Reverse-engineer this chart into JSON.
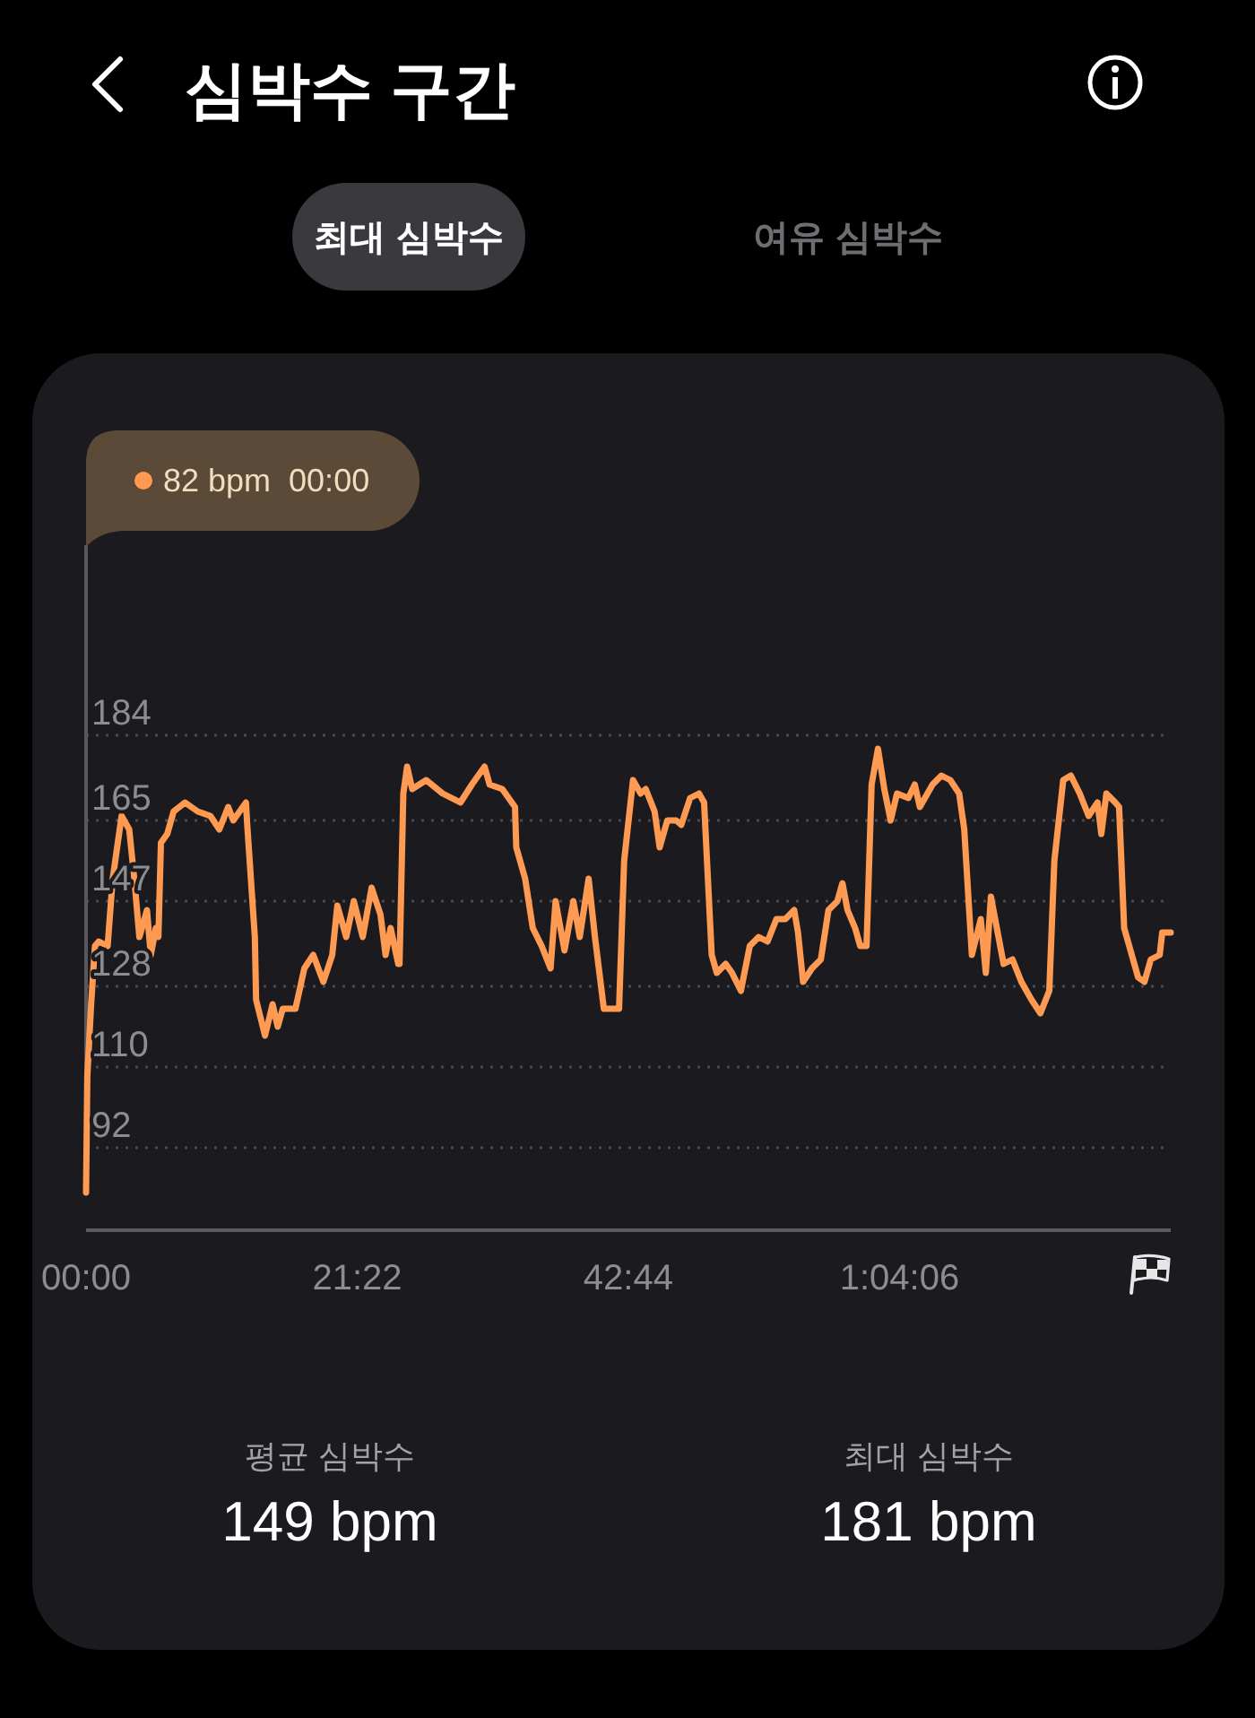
{
  "chart_data": {
    "type": "line",
    "title": "심박수 구간",
    "annotations": [
      "최대 심박수",
      "여유 심박수",
      "82 bpm  00:00",
      "평균 심박수",
      "149 bpm",
      "최대 심박수",
      "181 bpm"
    ],
    "x": [
      0,
      0.1,
      0.4,
      0.7,
      1.0,
      1.7,
      2.1,
      2.8,
      3.4,
      3.8,
      4.2,
      4.8,
      5.1,
      5.5,
      5.7,
      5.9,
      6.4,
      6.9,
      7.8,
      8.8,
      9.8,
      10.5,
      11.2,
      11.6,
      12.6,
      12.7,
      13.3,
      13.4,
      14.1,
      14.7,
      15.1,
      15.5,
      16.5,
      17.2,
      17.9,
      18.7,
      19.4,
      19.8,
      20.5,
      21.1,
      21.8,
      22.5,
      23.2,
      23.6,
      24.0,
      24.6,
      24.7,
      25.0,
      25.3,
      25.7,
      26.8,
      28.1,
      29.5,
      30.4,
      31.4,
      31.8,
      32.8,
      33.8,
      33.9,
      34.6,
      35.2,
      35.9,
      36.6,
      37.0,
      37.7,
      38.4,
      38.9,
      39.6,
      40.1,
      40.8,
      42.0,
      42.4,
      43.1,
      43.7,
      44.1,
      44.8,
      45.2,
      45.8,
      46.5,
      46.9,
      47.6,
      48.3,
      48.7,
      49.3,
      49.7,
      50.4,
      50.9,
      51.6,
      52.3,
      53.0,
      53.7,
      54.4,
      55.1,
      55.8,
      56.1,
      56.5,
      57.2,
      57.9,
      58.5,
      59.2,
      59.6,
      60.0,
      60.6,
      61.0,
      61.5,
      61.9,
      62.4,
      62.9,
      63.4,
      63.9,
      64.8,
      65.3,
      65.7,
      66.7,
      67.4,
      68.1,
      68.8,
      69.2,
      69.8,
      70.5,
      70.9,
      71.3,
      71.9,
      72.3,
      73.0,
      73.7,
      74.5,
      75.2,
      75.9,
      76.3,
      77.0,
      77.6,
      78.3,
      79.0,
      79.7,
      80.0,
      80.4,
      81.1,
      81.4,
      81.8,
      82.2,
      82.9,
      83.4,
      83.9,
      84.6,
      84.8,
      85.47
    ],
    "series": [
      {
        "color": "#ff9a52",
        "values": [
          82,
          108,
          124,
          137,
          138,
          137,
          152,
          166,
          163,
          152,
          139,
          145,
          135,
          141,
          139,
          160,
          162,
          167,
          169,
          167,
          166,
          163,
          168,
          165,
          169,
          164,
          139,
          125,
          117,
          124,
          119,
          123,
          123,
          132,
          135,
          129,
          135,
          146,
          139,
          147,
          139,
          150,
          144,
          135,
          141,
          133,
          133,
          171,
          177,
          172,
          174,
          171,
          169,
          173,
          177,
          173,
          172,
          168,
          159,
          152,
          141,
          137,
          132,
          147,
          136,
          147,
          139,
          152,
          139,
          123,
          123,
          156,
          174,
          171,
          172,
          167,
          159,
          165,
          165,
          164,
          170,
          171,
          169,
          135,
          131,
          133,
          131,
          127,
          137,
          139,
          138,
          143,
          143,
          145,
          140,
          129,
          132,
          134,
          145,
          147,
          151,
          145,
          141,
          137,
          137,
          173,
          181,
          172,
          165,
          171,
          170,
          173,
          168,
          173,
          175,
          174,
          171,
          163,
          135,
          143,
          131,
          148,
          139,
          133,
          134,
          129,
          125,
          122,
          127,
          156,
          174,
          175,
          171,
          166,
          169,
          162,
          171,
          169,
          168,
          141,
          137,
          130,
          129,
          134,
          135,
          140,
          140
        ]
      }
    ],
    "xlim": [
      0,
      85.47
    ],
    "xticks": [
      {
        "value": 0,
        "label": "00:00"
      },
      {
        "value": 21.37,
        "label": "21:22"
      },
      {
        "value": 42.73,
        "label": "42:44"
      },
      {
        "value": 64.1,
        "label": "1:04:06"
      }
    ],
    "ylim": [
      73.6,
      226.4
    ],
    "yticks": [
      92,
      110,
      128,
      147,
      165,
      184
    ],
    "grid": "y"
  }
}
